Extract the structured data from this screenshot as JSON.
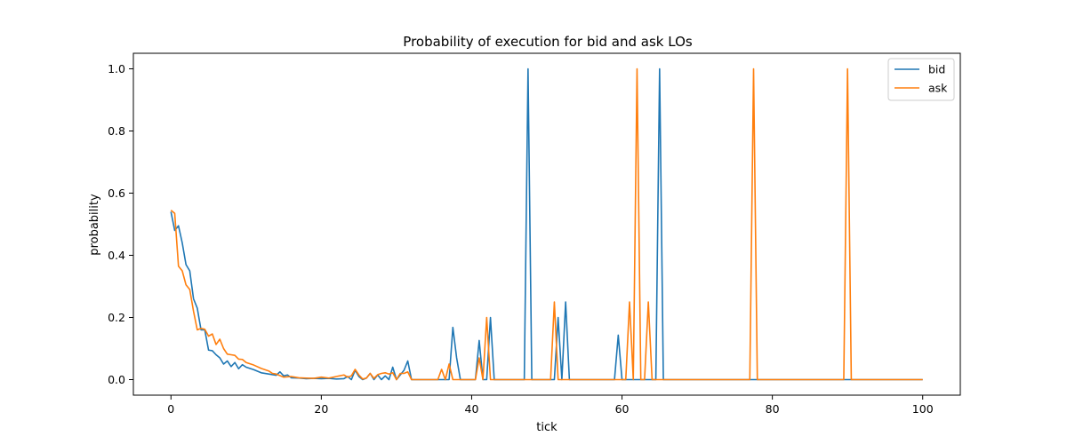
{
  "chart_data": {
    "type": "line",
    "title": "Probability of execution for bid and ask LOs",
    "xlabel": "tick",
    "ylabel": "probability",
    "xlim": [
      -5,
      105
    ],
    "ylim": [
      -0.05,
      1.05
    ],
    "xticks": [
      0,
      20,
      40,
      60,
      80,
      100
    ],
    "yticks": [
      0.0,
      0.2,
      0.4,
      0.6,
      0.8,
      1.0
    ],
    "xtick_labels": [
      "0",
      "20",
      "40",
      "60",
      "80",
      "100"
    ],
    "ytick_labels": [
      "0.0",
      "0.2",
      "0.4",
      "0.6",
      "0.8",
      "1.0"
    ],
    "grid": false,
    "legend_position": "top-right",
    "series": [
      {
        "name": "bid",
        "color": "#1f77b4",
        "points": [
          [
            0,
            0.54
          ],
          [
            0.5,
            0.48
          ],
          [
            1,
            0.495
          ],
          [
            1.5,
            0.44
          ],
          [
            2,
            0.37
          ],
          [
            2.5,
            0.35
          ],
          [
            3,
            0.26
          ],
          [
            3.5,
            0.23
          ],
          [
            4,
            0.16
          ],
          [
            4.5,
            0.16
          ],
          [
            5,
            0.095
          ],
          [
            5.5,
            0.093
          ],
          [
            6,
            0.08
          ],
          [
            6.5,
            0.07
          ],
          [
            7,
            0.05
          ],
          [
            7.5,
            0.06
          ],
          [
            8,
            0.042
          ],
          [
            8.5,
            0.055
          ],
          [
            9,
            0.035
          ],
          [
            9.5,
            0.048
          ],
          [
            10,
            0.04
          ],
          [
            11,
            0.032
          ],
          [
            12,
            0.022
          ],
          [
            13,
            0.018
          ],
          [
            14,
            0.014
          ],
          [
            14.5,
            0.025
          ],
          [
            15,
            0.012
          ],
          [
            15.5,
            0.015
          ],
          [
            16,
            0.006
          ],
          [
            17,
            0.005
          ],
          [
            18,
            0.003
          ],
          [
            19,
            0.004
          ],
          [
            20,
            0.003
          ],
          [
            21,
            0.004
          ],
          [
            22,
            0.002
          ],
          [
            23,
            0.003
          ],
          [
            23.5,
            0.01
          ],
          [
            24,
            0.0
          ],
          [
            24.5,
            0.03
          ],
          [
            25,
            0.01
          ],
          [
            25.5,
            0.0
          ],
          [
            26,
            0.005
          ],
          [
            26.5,
            0.02
          ],
          [
            27,
            0.0
          ],
          [
            27.5,
            0.015
          ],
          [
            28,
            0.0
          ],
          [
            28.5,
            0.012
          ],
          [
            29,
            0.0
          ],
          [
            29.5,
            0.04
          ],
          [
            30,
            0.0
          ],
          [
            30.5,
            0.015
          ],
          [
            31,
            0.03
          ],
          [
            31.5,
            0.06
          ],
          [
            32,
            0.0
          ],
          [
            36.5,
            0.0
          ],
          [
            37,
            0.0
          ],
          [
            37.5,
            0.168
          ],
          [
            38,
            0.07
          ],
          [
            38.5,
            0.0
          ],
          [
            40.5,
            0.0
          ],
          [
            41,
            0.126
          ],
          [
            41.5,
            0.0
          ],
          [
            42,
            0.0
          ],
          [
            42.5,
            0.2
          ],
          [
            43,
            0.0
          ],
          [
            47,
            0.0
          ],
          [
            47.5,
            1.0
          ],
          [
            48,
            0.0
          ],
          [
            51,
            0.0
          ],
          [
            51.5,
            0.2
          ],
          [
            52,
            0.0
          ],
          [
            52.5,
            0.25
          ],
          [
            53,
            0.0
          ],
          [
            59,
            0.0
          ],
          [
            59.5,
            0.143
          ],
          [
            60,
            0.0
          ],
          [
            64.5,
            0.0
          ],
          [
            65,
            1.0
          ],
          [
            65.5,
            0.0
          ],
          [
            100,
            0.0
          ]
        ]
      },
      {
        "name": "ask",
        "color": "#ff7f0e",
        "points": [
          [
            0,
            0.545
          ],
          [
            0.5,
            0.535
          ],
          [
            1,
            0.365
          ],
          [
            1.5,
            0.35
          ],
          [
            2,
            0.305
          ],
          [
            2.5,
            0.29
          ],
          [
            3,
            0.22
          ],
          [
            3.5,
            0.16
          ],
          [
            4,
            0.165
          ],
          [
            4.5,
            0.162
          ],
          [
            5,
            0.14
          ],
          [
            5.5,
            0.147
          ],
          [
            6,
            0.113
          ],
          [
            6.5,
            0.13
          ],
          [
            7,
            0.1
          ],
          [
            7.5,
            0.082
          ],
          [
            8,
            0.08
          ],
          [
            8.5,
            0.078
          ],
          [
            9,
            0.066
          ],
          [
            9.5,
            0.065
          ],
          [
            10,
            0.055
          ],
          [
            11,
            0.047
          ],
          [
            12,
            0.036
          ],
          [
            13,
            0.028
          ],
          [
            13.5,
            0.02
          ],
          [
            14,
            0.018
          ],
          [
            15,
            0.008
          ],
          [
            16,
            0.01
          ],
          [
            17,
            0.006
          ],
          [
            18,
            0.005
          ],
          [
            19,
            0.004
          ],
          [
            20,
            0.008
          ],
          [
            21,
            0.005
          ],
          [
            22,
            0.01
          ],
          [
            23,
            0.015
          ],
          [
            23.5,
            0.008
          ],
          [
            24,
            0.012
          ],
          [
            24.5,
            0.033
          ],
          [
            25,
            0.015
          ],
          [
            25.5,
            0.002
          ],
          [
            26,
            0.005
          ],
          [
            26.5,
            0.02
          ],
          [
            27,
            0.004
          ],
          [
            27.5,
            0.016
          ],
          [
            28,
            0.02
          ],
          [
            28.5,
            0.022
          ],
          [
            29,
            0.018
          ],
          [
            29.5,
            0.022
          ],
          [
            30,
            0.0
          ],
          [
            30.5,
            0.02
          ],
          [
            31,
            0.02
          ],
          [
            31.5,
            0.025
          ],
          [
            32,
            0.0
          ],
          [
            35.5,
            0.0
          ],
          [
            36,
            0.033
          ],
          [
            36.5,
            0.0
          ],
          [
            37,
            0.05
          ],
          [
            37.5,
            0.0
          ],
          [
            40.5,
            0.0
          ],
          [
            41,
            0.07
          ],
          [
            41.5,
            0.0
          ],
          [
            42,
            0.2
          ],
          [
            42.5,
            0.0
          ],
          [
            50.5,
            0.0
          ],
          [
            51,
            0.25
          ],
          [
            51.5,
            0.0
          ],
          [
            60.5,
            0.0
          ],
          [
            61,
            0.25
          ],
          [
            61.5,
            0.0
          ],
          [
            62,
            1.0
          ],
          [
            62.5,
            0.0
          ],
          [
            63,
            0.0
          ],
          [
            63.5,
            0.25
          ],
          [
            64,
            0.0
          ],
          [
            77,
            0.0
          ],
          [
            77.5,
            1.0
          ],
          [
            78,
            0.0
          ],
          [
            89.5,
            0.0
          ],
          [
            90,
            1.0
          ],
          [
            90.5,
            0.0
          ],
          [
            100,
            0.0
          ]
        ]
      }
    ]
  }
}
